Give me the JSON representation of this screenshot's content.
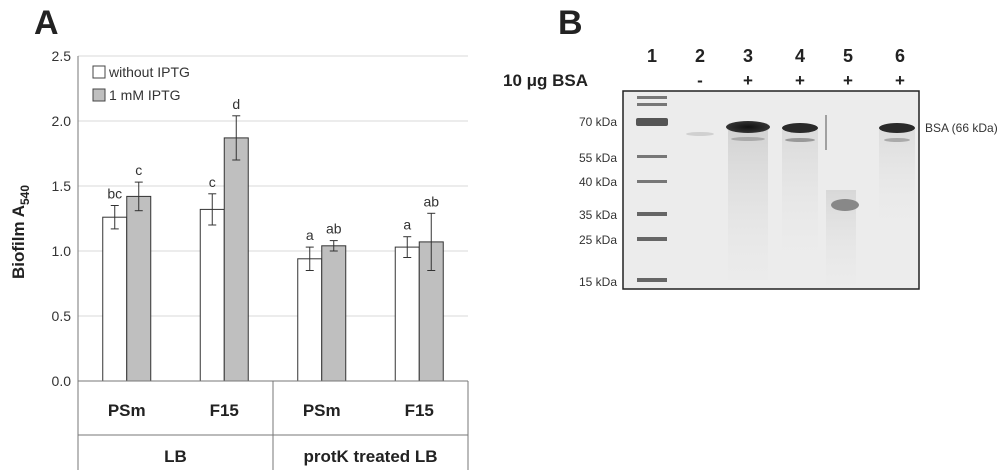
{
  "panel_a": {
    "letter": "A",
    "ylabel_main": "Biofilm A",
    "ylabel_sub": "540",
    "chart_data": {
      "type": "bar",
      "categories": [
        "PSm",
        "F15",
        "PSm",
        "F15"
      ],
      "groups": [
        "LB",
        "protK treated LB"
      ],
      "group_of_category": [
        0,
        0,
        1,
        1
      ],
      "series": [
        {
          "name": "without IPTG",
          "color": "#ffffff",
          "values": [
            1.26,
            1.32,
            0.94,
            1.03
          ],
          "errors": [
            0.09,
            0.12,
            0.09,
            0.08
          ],
          "letters": [
            "bc",
            "c",
            "a",
            "a"
          ]
        },
        {
          "name": "1 mM IPTG",
          "color": "#bfbfbf",
          "values": [
            1.42,
            1.87,
            1.04,
            1.07
          ],
          "errors": [
            0.11,
            0.17,
            0.04,
            0.22
          ],
          "letters": [
            "c",
            "d",
            "ab",
            "ab"
          ]
        }
      ],
      "ylim": [
        0,
        2.5
      ],
      "yticks": [
        "0.0",
        "0.5",
        "1.0",
        "1.5",
        "2.0",
        "2.5"
      ],
      "grid": true,
      "legend": "top-left"
    }
  },
  "panel_b": {
    "letter": "B",
    "lanes": [
      "1",
      "2",
      "3",
      "4",
      "5",
      "6"
    ],
    "bsa_label": "10 μg BSA",
    "bsa_signs": [
      "",
      "-",
      "+",
      "+",
      "+",
      "+"
    ],
    "markers": [
      "70 kDa",
      "55 kDa",
      "40 kDa",
      "35 kDa",
      "25 kDa",
      "15 kDa"
    ],
    "bsa_band_label": "BSA (66 kDa)"
  }
}
